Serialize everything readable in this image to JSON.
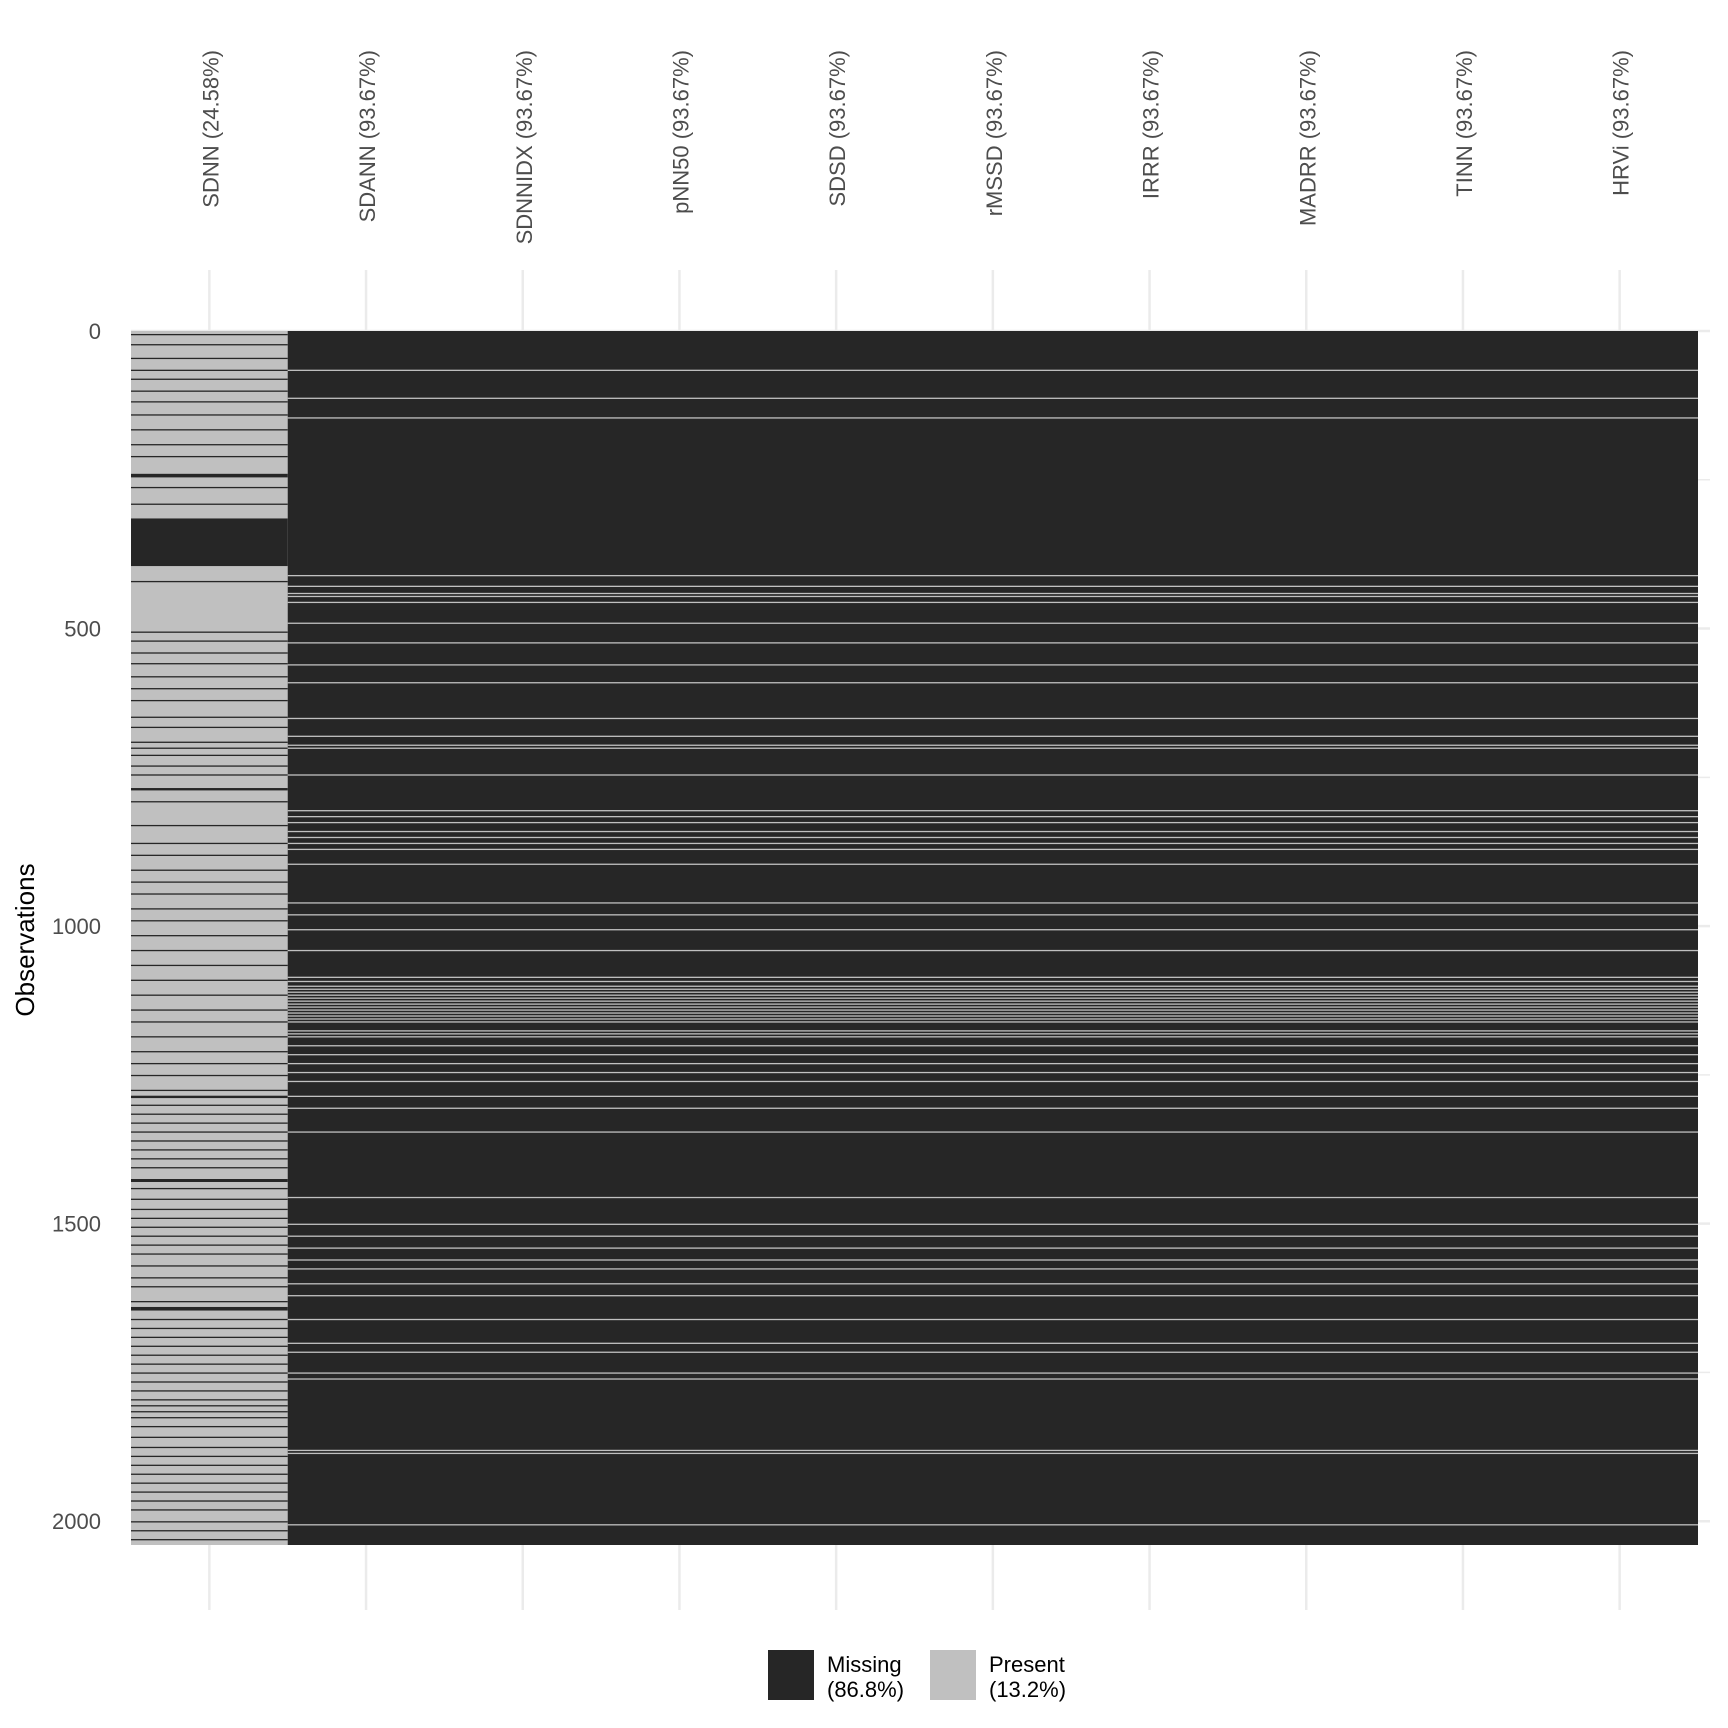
{
  "chart_data": {
    "type": "heatmap",
    "title": "",
    "xlabel": "",
    "ylabel": "Observations",
    "n_observations": 2040,
    "ylim": [
      0,
      2040
    ],
    "y_ticks": [
      0,
      500,
      1000,
      1500,
      2000
    ],
    "grid": true,
    "legend_position": "bottom",
    "colors": {
      "missing": "#262626",
      "present": "#c0c0c0",
      "grid": "#ebebeb",
      "text": "#4d4d4d"
    },
    "columns": [
      {
        "name": "SDNN",
        "label": "SDNN (24.58%)",
        "missing_pct": 24.58
      },
      {
        "name": "SDANN",
        "label": "SDANN (93.67%)",
        "missing_pct": 93.67
      },
      {
        "name": "SDNNIDX",
        "label": "SDNNIDX (93.67%)",
        "missing_pct": 93.67
      },
      {
        "name": "pNN50",
        "label": "pNN50 (93.67%)",
        "missing_pct": 93.67
      },
      {
        "name": "SDSD",
        "label": "SDSD (93.67%)",
        "missing_pct": 93.67
      },
      {
        "name": "rMSSD",
        "label": "rMSSD (93.67%)",
        "missing_pct": 93.67
      },
      {
        "name": "IRRR",
        "label": "IRRR (93.67%)",
        "missing_pct": 93.67
      },
      {
        "name": "MADRR",
        "label": "MADRR (93.67%)",
        "missing_pct": 93.67
      },
      {
        "name": "TINN",
        "label": "TINN (93.67%)",
        "missing_pct": 93.67
      },
      {
        "name": "HRVi",
        "label": "HRVi (93.67%)",
        "missing_pct": 93.67
      }
    ],
    "sdnn_missing_ranges": [
      [
        5,
        7
      ],
      [
        22,
        23
      ],
      [
        45,
        46
      ],
      [
        65,
        67
      ],
      [
        80,
        81
      ],
      [
        100,
        102
      ],
      [
        118,
        119
      ],
      [
        140,
        142
      ],
      [
        165,
        166
      ],
      [
        190,
        192
      ],
      [
        210,
        211
      ],
      [
        240,
        246
      ],
      [
        262,
        263
      ],
      [
        290,
        291
      ],
      [
        315,
        395
      ],
      [
        420,
        421
      ],
      [
        505,
        507
      ],
      [
        520,
        522
      ],
      [
        540,
        541
      ],
      [
        558,
        559
      ],
      [
        580,
        581
      ],
      [
        600,
        602
      ],
      [
        620,
        621
      ],
      [
        648,
        650
      ],
      [
        665,
        666
      ],
      [
        690,
        692
      ],
      [
        700,
        701
      ],
      [
        712,
        713
      ],
      [
        730,
        731
      ],
      [
        745,
        746
      ],
      [
        768,
        772
      ],
      [
        790,
        791
      ],
      [
        830,
        831
      ],
      [
        860,
        861
      ],
      [
        880,
        881
      ],
      [
        905,
        906
      ],
      [
        925,
        926
      ],
      [
        945,
        946
      ],
      [
        970,
        971
      ],
      [
        990,
        992
      ],
      [
        1015,
        1016
      ],
      [
        1040,
        1041
      ],
      [
        1065,
        1066
      ],
      [
        1090,
        1091
      ],
      [
        1115,
        1116
      ],
      [
        1140,
        1142
      ],
      [
        1160,
        1161
      ],
      [
        1185,
        1186
      ],
      [
        1210,
        1211
      ],
      [
        1230,
        1231
      ],
      [
        1250,
        1251
      ],
      [
        1275,
        1276
      ],
      [
        1285,
        1289
      ],
      [
        1300,
        1301
      ],
      [
        1315,
        1317
      ],
      [
        1330,
        1331
      ],
      [
        1345,
        1346
      ],
      [
        1360,
        1361
      ],
      [
        1375,
        1377
      ],
      [
        1390,
        1391
      ],
      [
        1405,
        1406
      ],
      [
        1425,
        1430
      ],
      [
        1440,
        1441
      ],
      [
        1458,
        1459
      ],
      [
        1475,
        1476
      ],
      [
        1490,
        1491
      ],
      [
        1505,
        1506
      ],
      [
        1520,
        1521
      ],
      [
        1535,
        1536
      ],
      [
        1550,
        1552
      ],
      [
        1570,
        1571
      ],
      [
        1590,
        1591
      ],
      [
        1605,
        1606
      ],
      [
        1630,
        1631
      ],
      [
        1640,
        1646
      ],
      [
        1660,
        1662
      ],
      [
        1675,
        1676
      ],
      [
        1690,
        1691
      ],
      [
        1705,
        1707
      ],
      [
        1720,
        1721
      ],
      [
        1735,
        1736
      ],
      [
        1750,
        1751
      ],
      [
        1765,
        1766
      ],
      [
        1780,
        1781
      ],
      [
        1795,
        1797
      ],
      [
        1805,
        1806
      ],
      [
        1815,
        1816
      ],
      [
        1825,
        1826
      ],
      [
        1840,
        1841
      ],
      [
        1858,
        1859
      ],
      [
        1875,
        1877
      ],
      [
        1890,
        1891
      ],
      [
        1905,
        1906
      ],
      [
        1920,
        1921
      ],
      [
        1935,
        1937
      ],
      [
        1950,
        1951
      ],
      [
        1965,
        1966
      ],
      [
        1980,
        1981
      ],
      [
        2000,
        2001
      ],
      [
        2015,
        2016
      ],
      [
        2030,
        2031
      ]
    ],
    "others_present_rows": [
      65,
      112,
      145,
      410,
      428,
      440,
      445,
      455,
      490,
      523,
      560,
      590,
      650,
      680,
      695,
      700,
      745,
      805,
      815,
      825,
      840,
      850,
      860,
      870,
      895,
      960,
      980,
      1005,
      1040,
      1085,
      1092,
      1100,
      1105,
      1110,
      1115,
      1120,
      1125,
      1130,
      1135,
      1140,
      1145,
      1150,
      1155,
      1160,
      1175,
      1180,
      1185,
      1200,
      1215,
      1230,
      1245,
      1260,
      1285,
      1305,
      1345,
      1455,
      1500,
      1520,
      1540,
      1560,
      1575,
      1600,
      1620,
      1660,
      1700,
      1715,
      1750,
      1760,
      1880,
      1885,
      2005
    ],
    "legend": [
      {
        "key": "missing",
        "label_line1": "Missing",
        "label_line2": "(86.8%)"
      },
      {
        "key": "present",
        "label_line1": "Present",
        "label_line2": "(13.2%)"
      }
    ]
  }
}
